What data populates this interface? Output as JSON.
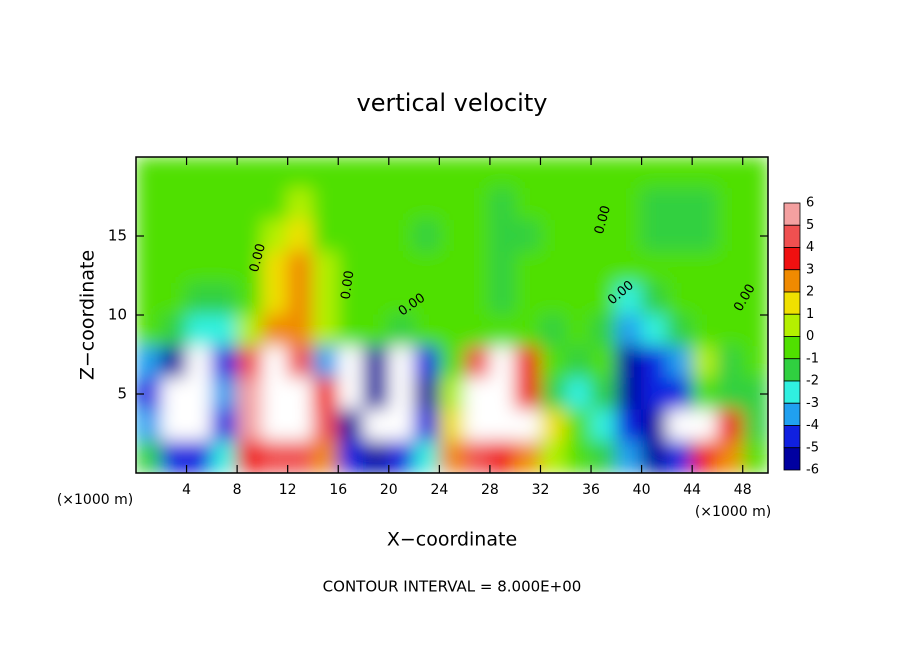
{
  "chart_data": {
    "type": "heatmap",
    "title": "vertical velocity",
    "xlabel": "X−coordinate",
    "ylabel": "Z−coordinate",
    "x_unit": "(×1000 m)",
    "footer": "CONTOUR INTERVAL = 8.000E+00",
    "xlim": [
      0,
      50
    ],
    "ylim": [
      0,
      20
    ],
    "xticks": [
      4,
      8,
      12,
      16,
      20,
      24,
      28,
      32,
      36,
      40,
      44,
      48
    ],
    "yticks": [
      5,
      10,
      15
    ],
    "x": [
      1,
      3,
      5,
      7,
      9,
      11,
      13,
      15,
      17,
      19,
      21,
      23,
      25,
      27,
      29,
      31,
      33,
      35,
      37,
      39,
      41,
      43,
      45,
      47,
      49
    ],
    "y": [
      19,
      17,
      15,
      13,
      11,
      9,
      7,
      5,
      3,
      1
    ],
    "z": [
      [
        0,
        0,
        0,
        0,
        0,
        0,
        0,
        0,
        0,
        0,
        0,
        0,
        0,
        0,
        0,
        0,
        0,
        0,
        0,
        0,
        0,
        0,
        0,
        0,
        0
      ],
      [
        0,
        0,
        0,
        0,
        0,
        0,
        1,
        0,
        0,
        0,
        0,
        0,
        0,
        0,
        -1,
        0,
        0,
        0,
        0,
        0,
        -1,
        -1,
        -1,
        0,
        0
      ],
      [
        0,
        0,
        0,
        0,
        0,
        1,
        2,
        0,
        0,
        0,
        0,
        -1,
        0,
        0,
        -1,
        -1,
        0,
        0,
        0,
        0,
        -1,
        -1,
        -1,
        0,
        0
      ],
      [
        0,
        0,
        0,
        0,
        0,
        2,
        3,
        1,
        0,
        0,
        0,
        0,
        0,
        0,
        -1,
        0,
        0,
        0,
        0,
        0,
        0,
        0,
        0,
        0,
        0
      ],
      [
        0,
        0,
        -1,
        -1,
        0,
        2,
        3,
        1,
        0,
        0,
        0,
        0,
        0,
        0,
        -1,
        0,
        0,
        0,
        0,
        -2,
        -1,
        0,
        0,
        0,
        0
      ],
      [
        0,
        -1,
        -2,
        -2,
        1,
        3,
        3,
        1,
        0,
        0,
        -1,
        0,
        0,
        0,
        0,
        0,
        -1,
        0,
        -1,
        -3,
        -2,
        -1,
        0,
        0,
        0
      ],
      [
        -3,
        -5,
        -10,
        -4,
        5,
        10,
        5,
        -3,
        -10,
        -5,
        -10,
        -4,
        0,
        5,
        10,
        4,
        0,
        -1,
        0,
        -6,
        -4,
        -3,
        1,
        -1,
        0
      ],
      [
        -4,
        -10,
        -10,
        -3,
        6,
        10,
        10,
        4,
        -10,
        -6,
        -10,
        -5,
        1,
        10,
        10,
        4,
        -1,
        -2,
        -1,
        -5,
        -4,
        -4,
        0,
        -1,
        -1
      ],
      [
        -3,
        -10,
        -10,
        -4,
        6,
        10,
        10,
        5,
        -5,
        -10,
        -8,
        -4,
        2,
        10,
        10,
        8,
        2,
        0,
        -2,
        -4,
        -5,
        -10,
        8,
        4,
        -1
      ],
      [
        -1,
        -4,
        -4,
        -2,
        4,
        5,
        5,
        3,
        -4,
        -5,
        -4,
        -2,
        3,
        5,
        4,
        3,
        1,
        0,
        -1,
        -3,
        -5,
        -4,
        4,
        3,
        0
      ]
    ],
    "colorbar": {
      "ticks": [
        6,
        5,
        4,
        3,
        2,
        1,
        0,
        -1,
        -2,
        -3,
        -4,
        -5,
        -6
      ],
      "colors": [
        "#f4a0a0",
        "#f05050",
        "#f01010",
        "#f08a00",
        "#f0e000",
        "#b4f000",
        "#50e000",
        "#30d040",
        "#30f0e0",
        "#20a0f0",
        "#1020e0",
        "#0000a0",
        "#7000a0"
      ]
    },
    "contour_labels": [
      "0.00",
      "0.00",
      "0.00",
      "0.00",
      "0.00",
      "0.00"
    ]
  }
}
